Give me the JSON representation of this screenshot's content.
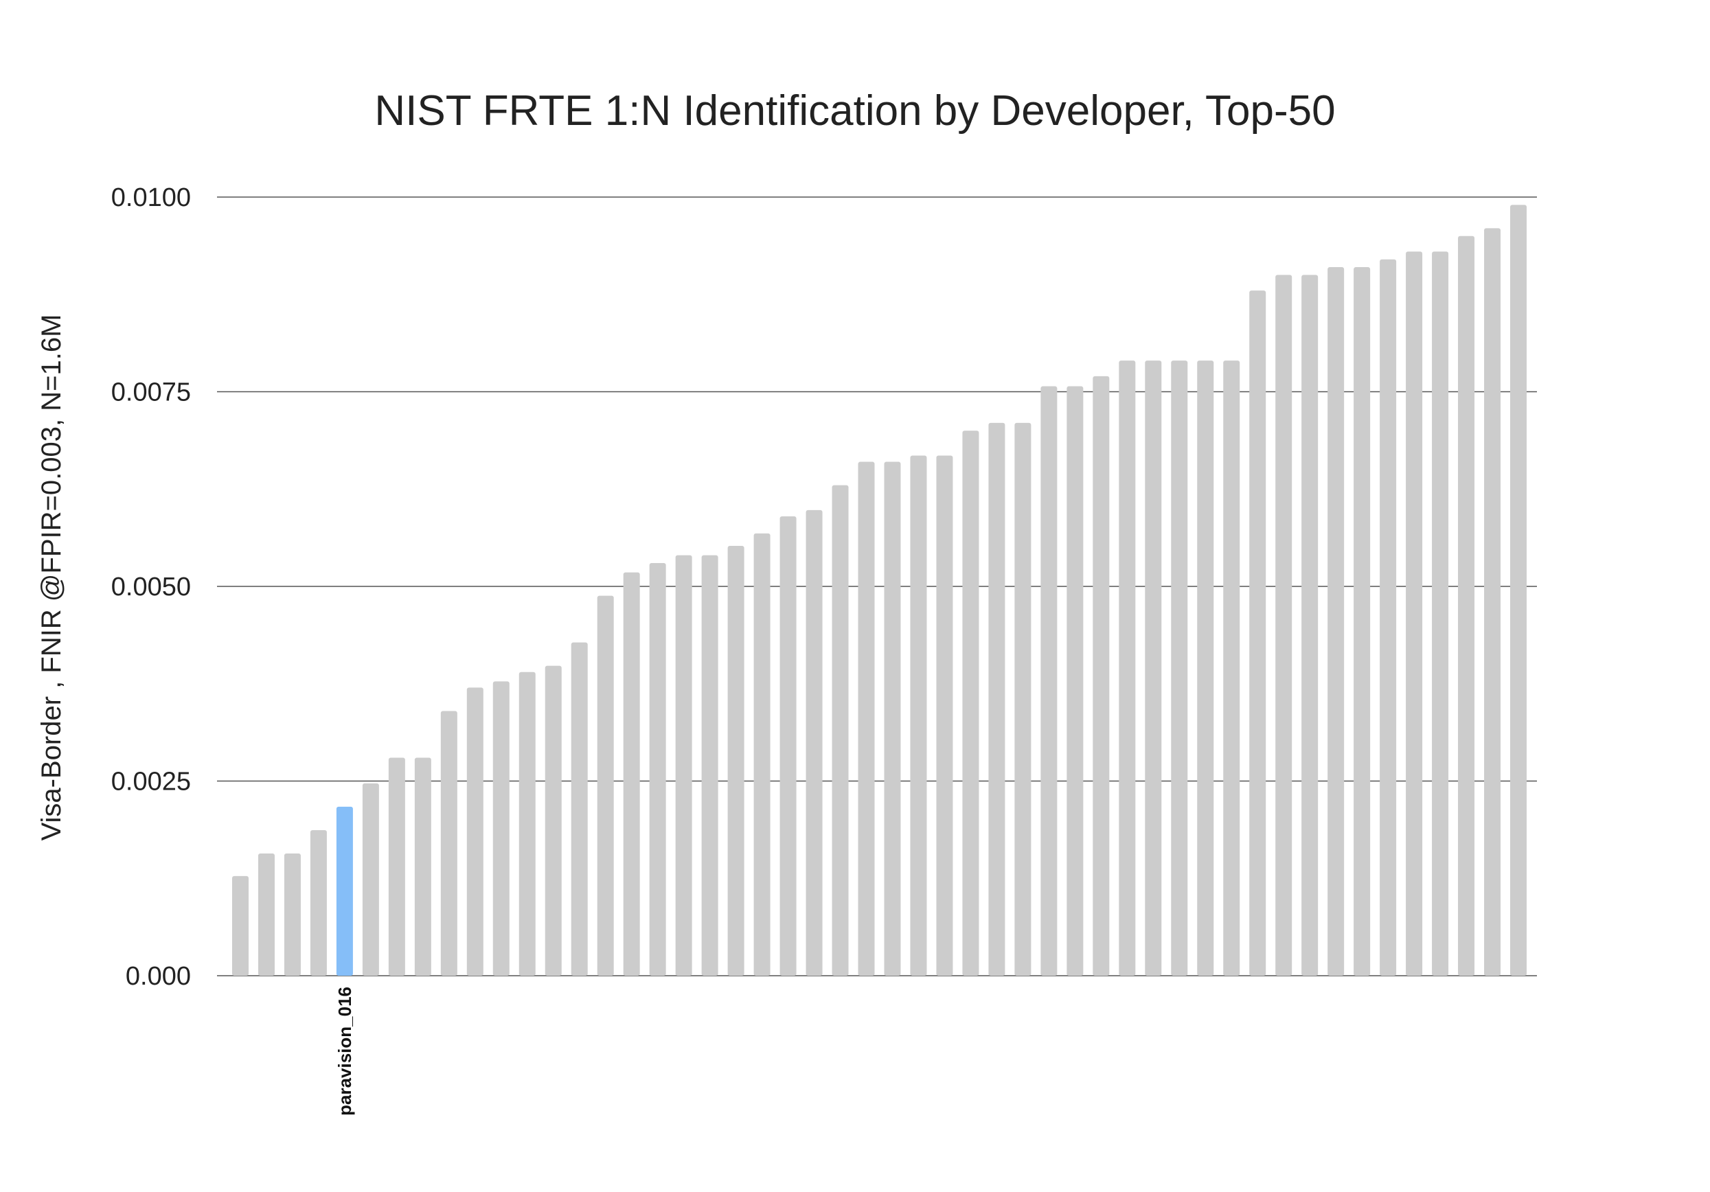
{
  "chart_data": {
    "type": "bar",
    "title": "NIST FRTE 1:N Identification by Developer, Top-50",
    "xlabel": "",
    "ylabel": "Visa-Border , FNIR @FPIR=0.003, N=1.6M",
    "ylim": [
      0,
      0.01
    ],
    "yticks": [
      {
        "value": 0.0,
        "label": "0.000"
      },
      {
        "value": 0.0025,
        "label": "0.0025"
      },
      {
        "value": 0.005,
        "label": "0.0050"
      },
      {
        "value": 0.0075,
        "label": "0.0075"
      },
      {
        "value": 0.01,
        "label": "0.0100"
      }
    ],
    "grid": true,
    "highlight_index": 4,
    "highlight_label": "paravision_016",
    "colors": {
      "bar": "#cccccc",
      "highlight": "#85bef8"
    },
    "values": [
      0.00128,
      0.00157,
      0.00157,
      0.00187,
      0.00217,
      0.00247,
      0.0028,
      0.0028,
      0.0034,
      0.0037,
      0.00378,
      0.0039,
      0.00398,
      0.00428,
      0.00488,
      0.00518,
      0.0053,
      0.0054,
      0.0054,
      0.00552,
      0.00568,
      0.0059,
      0.00598,
      0.0063,
      0.0066,
      0.0066,
      0.00668,
      0.00668,
      0.007,
      0.0071,
      0.0071,
      0.00757,
      0.00757,
      0.0077,
      0.0079,
      0.0079,
      0.0079,
      0.0079,
      0.0079,
      0.0088,
      0.009,
      0.009,
      0.0091,
      0.0091,
      0.0092,
      0.0093,
      0.0093,
      0.0095,
      0.0096,
      0.0099
    ]
  }
}
